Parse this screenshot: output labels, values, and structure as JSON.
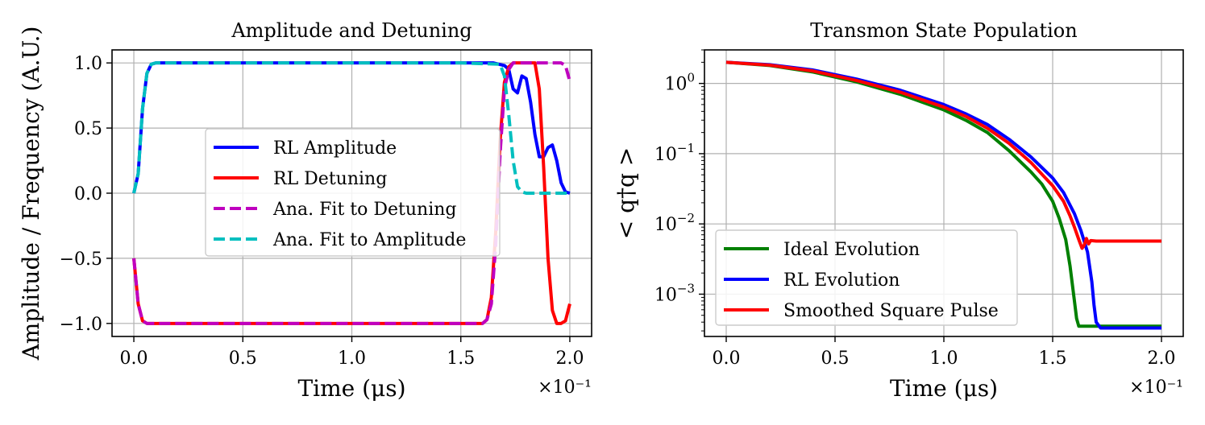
{
  "chart_data": [
    {
      "type": "line",
      "title": "Amplitude and Detuning",
      "xlabel": "Time (μs)",
      "ylabel": "Amplitude / Frequency (A.U.)",
      "x_multiplier": "×10⁻¹",
      "xlim": [
        -0.1,
        2.1
      ],
      "ylim": [
        -1.1,
        1.1
      ],
      "yscale": "linear",
      "xticks": [
        0.0,
        0.5,
        1.0,
        1.5,
        2.0
      ],
      "xtick_labels": [
        "0.0",
        "0.5",
        "1.0",
        "1.5",
        "2.0"
      ],
      "yticks": [
        -1.0,
        -0.5,
        0.0,
        0.5,
        1.0
      ],
      "ytick_labels": [
        "−1.0",
        "−0.5",
        "0.0",
        "0.5",
        "1.0"
      ],
      "grid": true,
      "legend_position": "center",
      "series": [
        {
          "name": "RL Amplitude",
          "color": "#0000ff",
          "style": "solid",
          "x": [
            0,
            0.02,
            0.04,
            0.06,
            0.08,
            0.1,
            0.5,
            1.0,
            1.5,
            1.65,
            1.7,
            1.72,
            1.74,
            1.76,
            1.78,
            1.8,
            1.82,
            1.84,
            1.86,
            1.88,
            1.9,
            1.92,
            1.94,
            1.96,
            1.98,
            2.0
          ],
          "y": [
            0.0,
            0.15,
            0.65,
            0.92,
            0.99,
            1.0,
            1.0,
            1.0,
            1.0,
            1.0,
            0.98,
            0.95,
            0.8,
            0.77,
            0.9,
            0.88,
            0.7,
            0.45,
            0.28,
            0.28,
            0.35,
            0.37,
            0.25,
            0.08,
            0.01,
            0.0
          ]
        },
        {
          "name": "RL Detuning",
          "color": "#ff0000",
          "style": "solid",
          "x": [
            0,
            0.02,
            0.04,
            0.06,
            0.1,
            0.5,
            1.0,
            1.5,
            1.6,
            1.62,
            1.64,
            1.66,
            1.68,
            1.7,
            1.72,
            1.74,
            1.8,
            1.84,
            1.86,
            1.88,
            1.9,
            1.92,
            1.94,
            1.96,
            1.98,
            2.0
          ],
          "y": [
            -0.5,
            -0.85,
            -0.98,
            -1.0,
            -1.0,
            -1.0,
            -1.0,
            -1.0,
            -1.0,
            -0.97,
            -0.8,
            -0.3,
            0.4,
            0.85,
            0.97,
            1.0,
            1.0,
            1.0,
            0.8,
            0.2,
            -0.5,
            -0.9,
            -1.0,
            -1.0,
            -0.98,
            -0.85
          ]
        },
        {
          "name": "Ana. Fit to Detuning",
          "color": "#bf00bf",
          "style": "dashed",
          "x": [
            0,
            0.02,
            0.04,
            0.06,
            0.1,
            0.5,
            1.0,
            1.5,
            1.6,
            1.62,
            1.64,
            1.66,
            1.68,
            1.7,
            1.72,
            1.74,
            1.76,
            1.8,
            1.9,
            1.96,
            1.98,
            2.0
          ],
          "y": [
            -0.5,
            -0.85,
            -0.98,
            -1.0,
            -1.0,
            -1.0,
            -1.0,
            -1.0,
            -1.0,
            -0.97,
            -0.85,
            -0.4,
            0.3,
            0.8,
            0.95,
            1.0,
            1.0,
            1.0,
            1.0,
            1.0,
            0.98,
            0.86
          ]
        },
        {
          "name": "Ana. Fit to Amplitude",
          "color": "#00bfbf",
          "style": "dashed",
          "x": [
            0,
            0.02,
            0.04,
            0.06,
            0.08,
            0.1,
            0.5,
            1.0,
            1.5,
            1.68,
            1.7,
            1.72,
            1.74,
            1.76,
            1.78,
            1.8,
            1.9,
            2.0
          ],
          "y": [
            0.0,
            0.15,
            0.65,
            0.92,
            0.99,
            1.0,
            1.0,
            1.0,
            1.0,
            0.99,
            0.9,
            0.6,
            0.25,
            0.05,
            0.01,
            0.0,
            0.0,
            0.0
          ]
        }
      ]
    },
    {
      "type": "line",
      "title": "Transmon State Population",
      "xlabel": "Time (μs)",
      "ylabel": "< q†q >",
      "x_multiplier": "×10⁻¹",
      "xlim": [
        -0.1,
        2.1
      ],
      "ylim": [
        0.00025,
        3.0
      ],
      "yscale": "log",
      "xticks": [
        0.0,
        0.5,
        1.0,
        1.5,
        2.0
      ],
      "xtick_labels": [
        "0.0",
        "0.5",
        "1.0",
        "1.5",
        "2.0"
      ],
      "yticks": [
        0.001,
        0.01,
        0.1,
        1
      ],
      "ytick_bases": [
        "10",
        "10",
        "10",
        "10"
      ],
      "ytick_exps": [
        "−3",
        "−2",
        "−1",
        "0"
      ],
      "grid": true,
      "legend_position": "lower left",
      "series": [
        {
          "name": "Ideal Evolution",
          "color": "#008000",
          "style": "solid",
          "x": [
            0,
            0.2,
            0.4,
            0.6,
            0.8,
            1.0,
            1.1,
            1.2,
            1.3,
            1.4,
            1.45,
            1.5,
            1.53,
            1.56,
            1.58,
            1.6,
            1.61,
            1.62,
            1.7,
            1.8,
            1.9,
            2.0
          ],
          "y": [
            2.0,
            1.8,
            1.45,
            1.05,
            0.7,
            0.42,
            0.3,
            0.2,
            0.11,
            0.055,
            0.037,
            0.021,
            0.012,
            0.006,
            0.0025,
            0.0008,
            0.00045,
            0.00035,
            0.00035,
            0.00035,
            0.00035,
            0.00035
          ]
        },
        {
          "name": "RL Evolution",
          "color": "#0000ff",
          "style": "solid",
          "x": [
            0,
            0.2,
            0.4,
            0.6,
            0.8,
            1.0,
            1.1,
            1.2,
            1.3,
            1.4,
            1.5,
            1.55,
            1.6,
            1.63,
            1.66,
            1.68,
            1.69,
            1.7,
            1.72,
            1.8,
            1.9,
            2.0
          ],
          "y": [
            2.0,
            1.85,
            1.55,
            1.15,
            0.8,
            0.5,
            0.37,
            0.26,
            0.16,
            0.09,
            0.045,
            0.028,
            0.014,
            0.008,
            0.004,
            0.0015,
            0.0007,
            0.0004,
            0.00033,
            0.00033,
            0.00033,
            0.00033
          ]
        },
        {
          "name": "Smoothed Square Pulse",
          "color": "#ff0000",
          "style": "solid",
          "x": [
            0,
            0.2,
            0.4,
            0.6,
            0.8,
            1.0,
            1.1,
            1.2,
            1.3,
            1.4,
            1.5,
            1.55,
            1.58,
            1.6,
            1.62,
            1.635,
            1.645,
            1.655,
            1.665,
            1.675,
            1.7,
            1.8,
            1.9,
            2.0
          ],
          "y": [
            2.0,
            1.82,
            1.5,
            1.1,
            0.75,
            0.46,
            0.34,
            0.23,
            0.14,
            0.075,
            0.035,
            0.021,
            0.013,
            0.009,
            0.006,
            0.0045,
            0.005,
            0.0062,
            0.0052,
            0.0058,
            0.0057,
            0.0057,
            0.0057,
            0.0057
          ]
        }
      ]
    }
  ]
}
